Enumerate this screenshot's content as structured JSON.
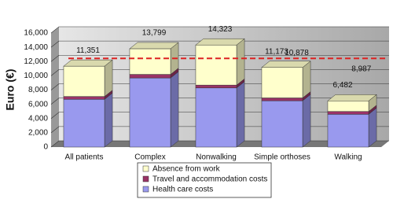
{
  "chart_data": {
    "type": "stacked_bar_3d",
    "y_label": "Euro (€)",
    "categories": [
      "All patients",
      "Complex",
      "Nonwalking",
      "Simple orthoses",
      "Walking"
    ],
    "series": [
      {
        "name": "Health care costs",
        "color": "#9999ee",
        "values": [
          6700,
          9700,
          8300,
          6500,
          4600
        ]
      },
      {
        "name": "Travel and accommodation costs",
        "color": "#993366",
        "values": [
          400,
          500,
          400,
          400,
          400
        ]
      },
      {
        "name": "Absence from work",
        "color": "#ffffcc",
        "values": [
          4251,
          3599,
          5623,
          4273,
          1482
        ]
      }
    ],
    "total_labels": [
      "11,351",
      "13,799",
      "14,323",
      "11,173",
      "6,482"
    ],
    "annotations": [
      "10,878",
      "8,987"
    ],
    "reference_line": 12000,
    "reference_color": "#dd2222",
    "ylim": [
      0,
      16000
    ],
    "yticks": [
      0,
      {
        "value": 2000,
        "label": "2,000"
      },
      {
        "value": 4000,
        "label": "4,000"
      },
      {
        "value": 6000,
        "label": "6,000"
      },
      {
        "value": 8000,
        "label": "8,000"
      },
      {
        "value": 10000,
        "label": "10,000"
      },
      {
        "value": 12000,
        "label": "12,000"
      },
      {
        "value": 14000,
        "label": "14,000"
      },
      {
        "value": 16000,
        "label": "16,000"
      }
    ],
    "grid": true,
    "legend": "bottom"
  }
}
